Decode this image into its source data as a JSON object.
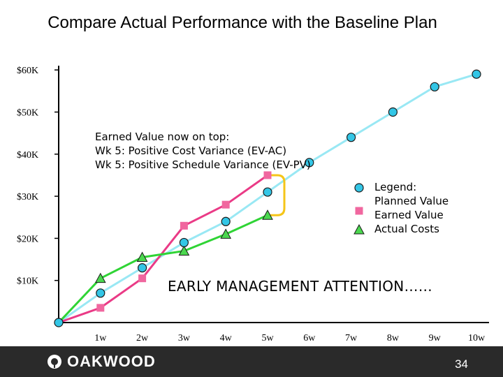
{
  "title": "Compare Actual Performance with the Baseline Plan",
  "chart_data": {
    "type": "line",
    "title": "Compare Actual Performance with the Baseline Plan",
    "x_labels": [
      "",
      "1w",
      "2w",
      "3w",
      "4w",
      "5w",
      "6w",
      "7w",
      "8w",
      "9w",
      "10w"
    ],
    "y_ticks": [
      10000,
      20000,
      30000,
      40000,
      50000,
      60000
    ],
    "y_tick_labels": [
      "$10K",
      "$20K",
      "$30K",
      "$40K",
      "$50K",
      "$60K"
    ],
    "ylim": [
      0,
      61000
    ],
    "series": [
      {
        "name": "Planned Value",
        "marker": "circle",
        "line_color": "#99e8f4",
        "marker_color": "#33c6e6",
        "values": [
          0,
          7000,
          13000,
          19000,
          24000,
          31000,
          38000,
          44000,
          50000,
          56000,
          59000
        ]
      },
      {
        "name": "Earned Value",
        "marker": "square",
        "line_color": "#ea3a86",
        "marker_color": "#f0679f",
        "values": [
          0,
          3500,
          10500,
          23000,
          28000,
          35000
        ]
      },
      {
        "name": "Actual Costs",
        "marker": "triangle",
        "line_color": "#2fd435",
        "marker_color": "#4bd84f",
        "values": [
          0,
          10500,
          15500,
          17000,
          21000,
          25500
        ]
      }
    ],
    "annotations": [
      "Earned Value now on top:",
      "Wk 5: Positive Cost Variance (EV-AC)",
      "Wk 5: Positive Schedule Variance (EV-PV)"
    ],
    "callout": "EARLY MANAGEMENT ATTENTION……",
    "legend": {
      "title": "Legend:",
      "entries": [
        "Planned Value",
        "Earned Value",
        "Actual Costs"
      ]
    }
  },
  "footer": {
    "brand": "OAKWOOD",
    "page_number": "34"
  },
  "colors": {
    "bracket": "#f5c518",
    "axis": "#000000",
    "footer_bg": "#2a2a2a"
  }
}
